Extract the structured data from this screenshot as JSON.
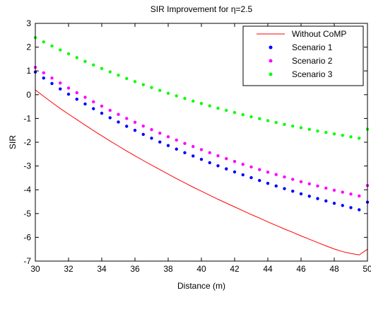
{
  "chart_data": {
    "type": "line",
    "title": "SIR Improvement for η=2.5",
    "xlabel": "Distance (m)",
    "ylabel": "SIR",
    "xlim": [
      30,
      50
    ],
    "ylim": [
      -7,
      3
    ],
    "xticks": [
      "30",
      "32",
      "34",
      "36",
      "38",
      "40",
      "42",
      "44",
      "46",
      "48",
      "50"
    ],
    "yticks": [
      "3",
      "2",
      "1",
      "0",
      "-1",
      "-2",
      "-3",
      "-4",
      "-5",
      "-6",
      "-7"
    ],
    "grid": false,
    "legend_position": "top-right",
    "x_start": 30,
    "x_step": 0.5,
    "series": [
      {
        "name": "Without CoMP",
        "style": "line",
        "color": "#ff0000",
        "values": [
          0.2,
          -0.07,
          -0.33,
          -0.58,
          -0.82,
          -1.05,
          -1.28,
          -1.51,
          -1.73,
          -1.95,
          -2.16,
          -2.37,
          -2.57,
          -2.77,
          -2.96,
          -3.15,
          -3.34,
          -3.53,
          -3.71,
          -3.89,
          -4.06,
          -4.23,
          -4.4,
          -4.56,
          -4.72,
          -4.88,
          -5.04,
          -5.19,
          -5.35,
          -5.5,
          -5.65,
          -5.79,
          -5.94,
          -6.08,
          -6.22,
          -6.36,
          -6.49,
          -6.6,
          -6.68,
          -6.74,
          -6.5
        ]
      },
      {
        "name": "Scenario 1",
        "style": "dots",
        "color": "#0000ff",
        "values": [
          0.95,
          0.7,
          0.47,
          0.24,
          0.02,
          -0.19,
          -0.39,
          -0.59,
          -0.78,
          -0.97,
          -1.15,
          -1.33,
          -1.5,
          -1.67,
          -1.83,
          -1.99,
          -2.14,
          -2.29,
          -2.44,
          -2.58,
          -2.72,
          -2.86,
          -2.99,
          -3.12,
          -3.25,
          -3.37,
          -3.49,
          -3.61,
          -3.73,
          -3.84,
          -3.95,
          -4.06,
          -4.17,
          -4.27,
          -4.37,
          -4.47,
          -4.57,
          -4.66,
          -4.75,
          -4.84,
          -4.52
        ]
      },
      {
        "name": "Scenario 2",
        "style": "dots",
        "color": "#ff00ff",
        "values": [
          1.15,
          0.92,
          0.7,
          0.49,
          0.28,
          0.08,
          -0.11,
          -0.3,
          -0.48,
          -0.66,
          -0.83,
          -1.0,
          -1.16,
          -1.32,
          -1.47,
          -1.62,
          -1.77,
          -1.91,
          -2.05,
          -2.18,
          -2.31,
          -2.44,
          -2.57,
          -2.69,
          -2.81,
          -2.93,
          -3.04,
          -3.15,
          -3.26,
          -3.36,
          -3.46,
          -3.56,
          -3.66,
          -3.75,
          -3.84,
          -3.93,
          -4.02,
          -4.1,
          -4.18,
          -4.26,
          -3.82
        ]
      },
      {
        "name": "Scenario 3",
        "style": "dots",
        "color": "#00ff00",
        "values": [
          2.4,
          2.22,
          2.05,
          1.88,
          1.72,
          1.56,
          1.4,
          1.25,
          1.1,
          0.96,
          0.82,
          0.68,
          0.55,
          0.42,
          0.3,
          0.18,
          0.06,
          -0.05,
          -0.16,
          -0.27,
          -0.37,
          -0.47,
          -0.57,
          -0.66,
          -0.75,
          -0.84,
          -0.93,
          -1.01,
          -1.09,
          -1.17,
          -1.25,
          -1.32,
          -1.39,
          -1.46,
          -1.53,
          -1.59,
          -1.65,
          -1.71,
          -1.77,
          -1.83,
          -1.45
        ]
      }
    ]
  }
}
